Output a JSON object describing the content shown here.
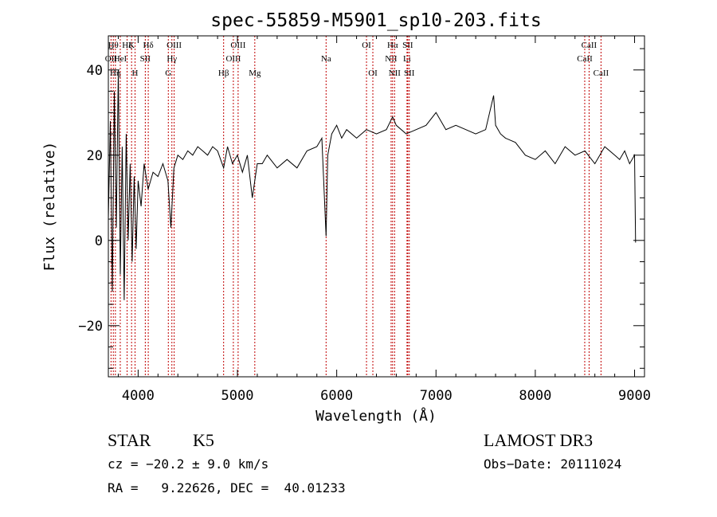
{
  "chart_data": {
    "type": "line",
    "title": "spec-55859-M5901_sp10-203.fits",
    "xlabel": "Wavelength (Å)",
    "ylabel": "Flux (relative)",
    "xlim": [
      3700,
      9100
    ],
    "ylim": [
      -32,
      48
    ],
    "xticks": [
      {
        "value": 4000,
        "label": "4000"
      },
      {
        "value": 5000,
        "label": "5000"
      },
      {
        "value": 6000,
        "label": "6000"
      },
      {
        "value": 7000,
        "label": "7000"
      },
      {
        "value": 8000,
        "label": "8000"
      },
      {
        "value": 9000,
        "label": "9000"
      }
    ],
    "yticks": [
      {
        "value": -20,
        "label": "−20"
      },
      {
        "value": 0,
        "label": "0"
      },
      {
        "value": 20,
        "label": "20"
      },
      {
        "value": 40,
        "label": "40"
      }
    ],
    "series": [
      {
        "name": "spectrum",
        "color": "#000000",
        "x": [
          3700,
          3720,
          3740,
          3760,
          3780,
          3800,
          3820,
          3840,
          3860,
          3880,
          3900,
          3920,
          3940,
          3960,
          3980,
          4000,
          4030,
          4060,
          4100,
          4150,
          4200,
          4250,
          4300,
          4330,
          4360,
          4400,
          4450,
          4500,
          4550,
          4600,
          4650,
          4700,
          4750,
          4800,
          4861,
          4900,
          4950,
          5000,
          5050,
          5100,
          5150,
          5175,
          5200,
          5250,
          5300,
          5400,
          5500,
          5600,
          5700,
          5800,
          5850,
          5893,
          5910,
          5950,
          6000,
          6050,
          6100,
          6200,
          6300,
          6400,
          6500,
          6563,
          6600,
          6700,
          6800,
          6900,
          7000,
          7100,
          7200,
          7300,
          7400,
          7500,
          7580,
          7600,
          7650,
          7700,
          7800,
          7900,
          8000,
          8100,
          8200,
          8300,
          8400,
          8500,
          8600,
          8700,
          8800,
          8850,
          8900,
          8950,
          9000,
          9010
        ],
        "y": [
          5,
          28,
          -12,
          35,
          3,
          40,
          -8,
          22,
          -14,
          25,
          0,
          18,
          -5,
          15,
          -2,
          14,
          8,
          18,
          12,
          16,
          15,
          18,
          14,
          3,
          17,
          20,
          19,
          21,
          20,
          22,
          21,
          20,
          22,
          21,
          17,
          22,
          18,
          20,
          16,
          20,
          10,
          14,
          18,
          18,
          20,
          17,
          19,
          17,
          21,
          22,
          24,
          1,
          20,
          25,
          27,
          24,
          26,
          24,
          26,
          25,
          26,
          29,
          27,
          25,
          26,
          27,
          30,
          26,
          27,
          26,
          25,
          26,
          34,
          27,
          25,
          24,
          23,
          20,
          19,
          21,
          18,
          22,
          20,
          21,
          18,
          22,
          20,
          19,
          21,
          18,
          20,
          -0.5
        ]
      }
    ],
    "lines": [
      {
        "x": 3727,
        "top": "OII",
        "row": 2
      },
      {
        "x": 3750,
        "top": "Hθ",
        "row": 1
      },
      {
        "x": 3771,
        "top": "Hη",
        "row": 3
      },
      {
        "x": 3820,
        "top": "HeI",
        "row": 2
      },
      {
        "x": 3889,
        "top": "Hζ",
        "row": 1
      },
      {
        "x": 3934,
        "top": "K",
        "row": 1
      },
      {
        "x": 3969,
        "top": "H",
        "row": 3
      },
      {
        "x": 4072,
        "top": "SII",
        "row": 2
      },
      {
        "x": 4102,
        "top": "Hδ",
        "row": 1
      },
      {
        "x": 4304,
        "top": "G",
        "row": 3
      },
      {
        "x": 4340,
        "top": "Hγ",
        "row": 2
      },
      {
        "x": 4363,
        "top": "OIII",
        "row": 1
      },
      {
        "x": 4861,
        "top": "Hβ",
        "row": 3
      },
      {
        "x": 4959,
        "top": "OIII",
        "row": 2
      },
      {
        "x": 5007,
        "top": "OIII",
        "row": 1
      },
      {
        "x": 5175,
        "top": "Mg",
        "row": 3
      },
      {
        "x": 5893,
        "top": "Na",
        "row": 2
      },
      {
        "x": 6300,
        "top": "OI",
        "row": 1
      },
      {
        "x": 6364,
        "top": "OI",
        "row": 3
      },
      {
        "x": 6548,
        "top": "NII",
        "row": 2
      },
      {
        "x": 6563,
        "top": "Hα",
        "row": 1
      },
      {
        "x": 6583,
        "top": "NII",
        "row": 3
      },
      {
        "x": 6708,
        "top": "Li",
        "row": 2
      },
      {
        "x": 6716,
        "top": "SII",
        "row": 1
      },
      {
        "x": 6731,
        "top": "SII",
        "row": 3
      },
      {
        "x": 8498,
        "top": "CaII",
        "row": 2
      },
      {
        "x": 8542,
        "top": "CaII",
        "row": 1
      },
      {
        "x": 8662,
        "top": "CaII",
        "row": 3
      }
    ]
  },
  "info": {
    "class": "STAR",
    "subclass": "K5",
    "survey": "LAMOST DR3",
    "redshift": "cz = −20.2 ± 9.0 km/s",
    "obs_date": "Obs−Date: 20111024",
    "coords": "RA =   9.22626, DEC =  40.01233"
  },
  "colors": {
    "line_marker": "#c00000",
    "spectrum": "#000000",
    "axis": "#000000"
  }
}
